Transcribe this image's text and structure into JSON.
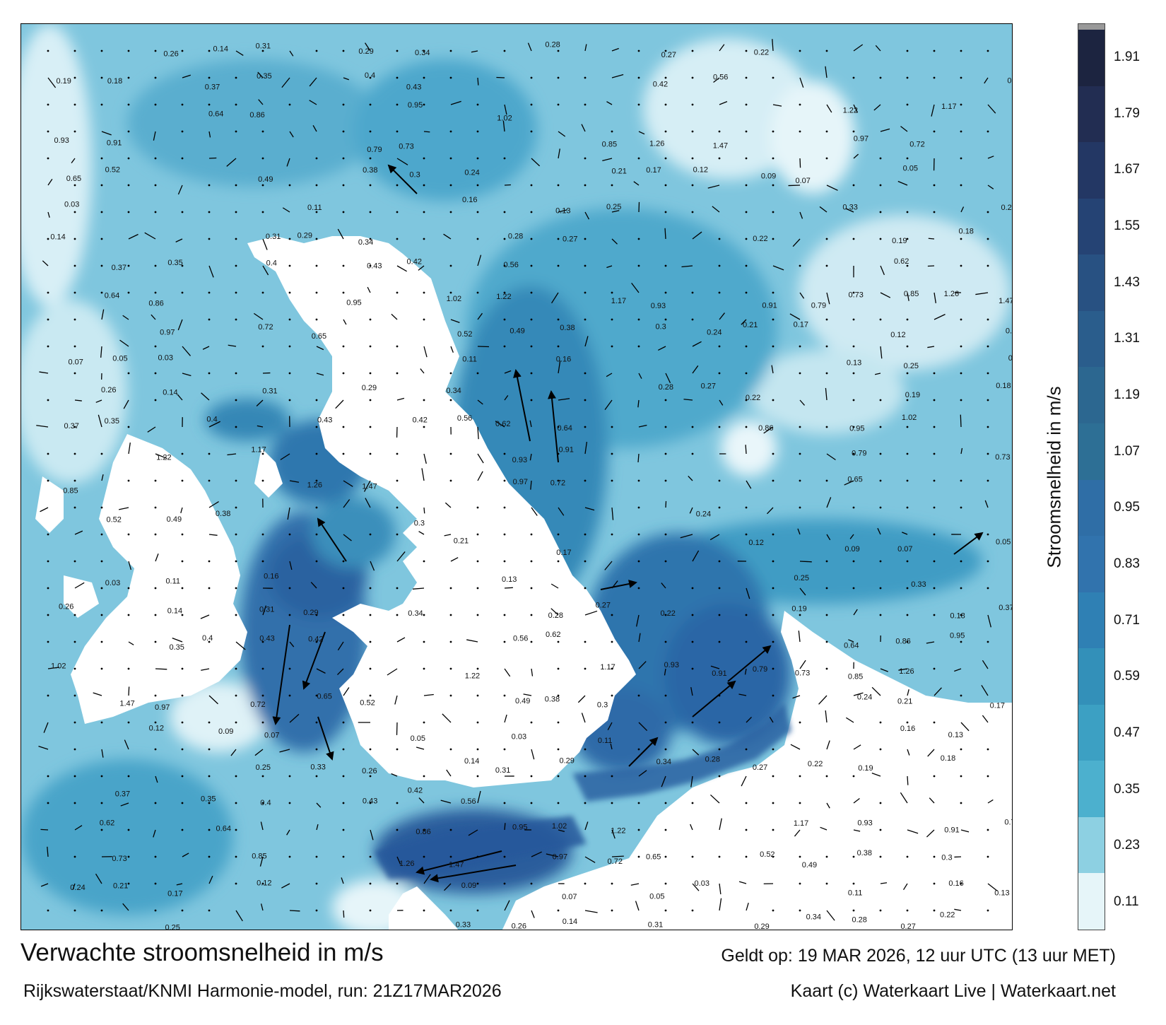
{
  "title": "Verwachte stroomsnelheid in m/s",
  "valid_time": "Geldt op: 19 MAR 2026, 12 uur UTC (13 uur MET)",
  "source": "Rijkswaterstaat/KNMI Harmonie-model, run: 21Z17MAR2026",
  "copyright": "Kaart (c) Waterkaart Live | Waterkaart.net",
  "colorbar": {
    "label": "Stroomsnelheid in m/s",
    "ticks": [
      "1.91",
      "1.79",
      "1.67",
      "1.55",
      "1.43",
      "1.31",
      "1.19",
      "1.07",
      "0.95",
      "0.83",
      "0.71",
      "0.59",
      "0.47",
      "0.35",
      "0.23",
      "0.11"
    ],
    "colors": [
      "#1c2440",
      "#222d52",
      "#233764",
      "#254374",
      "#285182",
      "#2a5d8c",
      "#2c6790",
      "#2d6f95",
      "#2f6ea6",
      "#3173ad",
      "#2f80b4",
      "#3390b9",
      "#3ca0c3",
      "#4cb0ce",
      "#8dd0e2",
      "#e6f5f9"
    ]
  },
  "sample_labels": [
    {
      "text": "0.26"
    },
    {
      "text": "0.14"
    },
    {
      "text": "0.31"
    },
    {
      "text": "0.29"
    },
    {
      "text": "0.34"
    },
    {
      "text": "0.28"
    },
    {
      "text": "0.27"
    },
    {
      "text": "0.22"
    },
    {
      "text": "0.19"
    },
    {
      "text": "0.18"
    },
    {
      "text": "0.37"
    },
    {
      "text": "0.35"
    },
    {
      "text": "0.4"
    },
    {
      "text": "0.43"
    },
    {
      "text": "0.42"
    },
    {
      "text": "0.56"
    },
    {
      "text": "0.62"
    },
    {
      "text": "0.64"
    },
    {
      "text": "0.86"
    },
    {
      "text": "0.95"
    },
    {
      "text": "1.02"
    },
    {
      "text": "1.22"
    },
    {
      "text": "1.17"
    },
    {
      "text": "0.93"
    },
    {
      "text": "0.91"
    },
    {
      "text": "0.79"
    },
    {
      "text": "0.73"
    },
    {
      "text": "0.85"
    },
    {
      "text": "1.26"
    },
    {
      "text": "1.47"
    },
    {
      "text": "0.97"
    },
    {
      "text": "0.72"
    },
    {
      "text": "0.65"
    },
    {
      "text": "0.52"
    },
    {
      "text": "0.49"
    },
    {
      "text": "0.38"
    },
    {
      "text": "0.3"
    },
    {
      "text": "0.24"
    },
    {
      "text": "0.21"
    },
    {
      "text": "0.17"
    },
    {
      "text": "0.12"
    },
    {
      "text": "0.09"
    },
    {
      "text": "0.07"
    },
    {
      "text": "0.05"
    },
    {
      "text": "0.03"
    },
    {
      "text": "0.11"
    },
    {
      "text": "0.16"
    },
    {
      "text": "0.13"
    },
    {
      "text": "0.25"
    },
    {
      "text": "0.33"
    }
  ]
}
